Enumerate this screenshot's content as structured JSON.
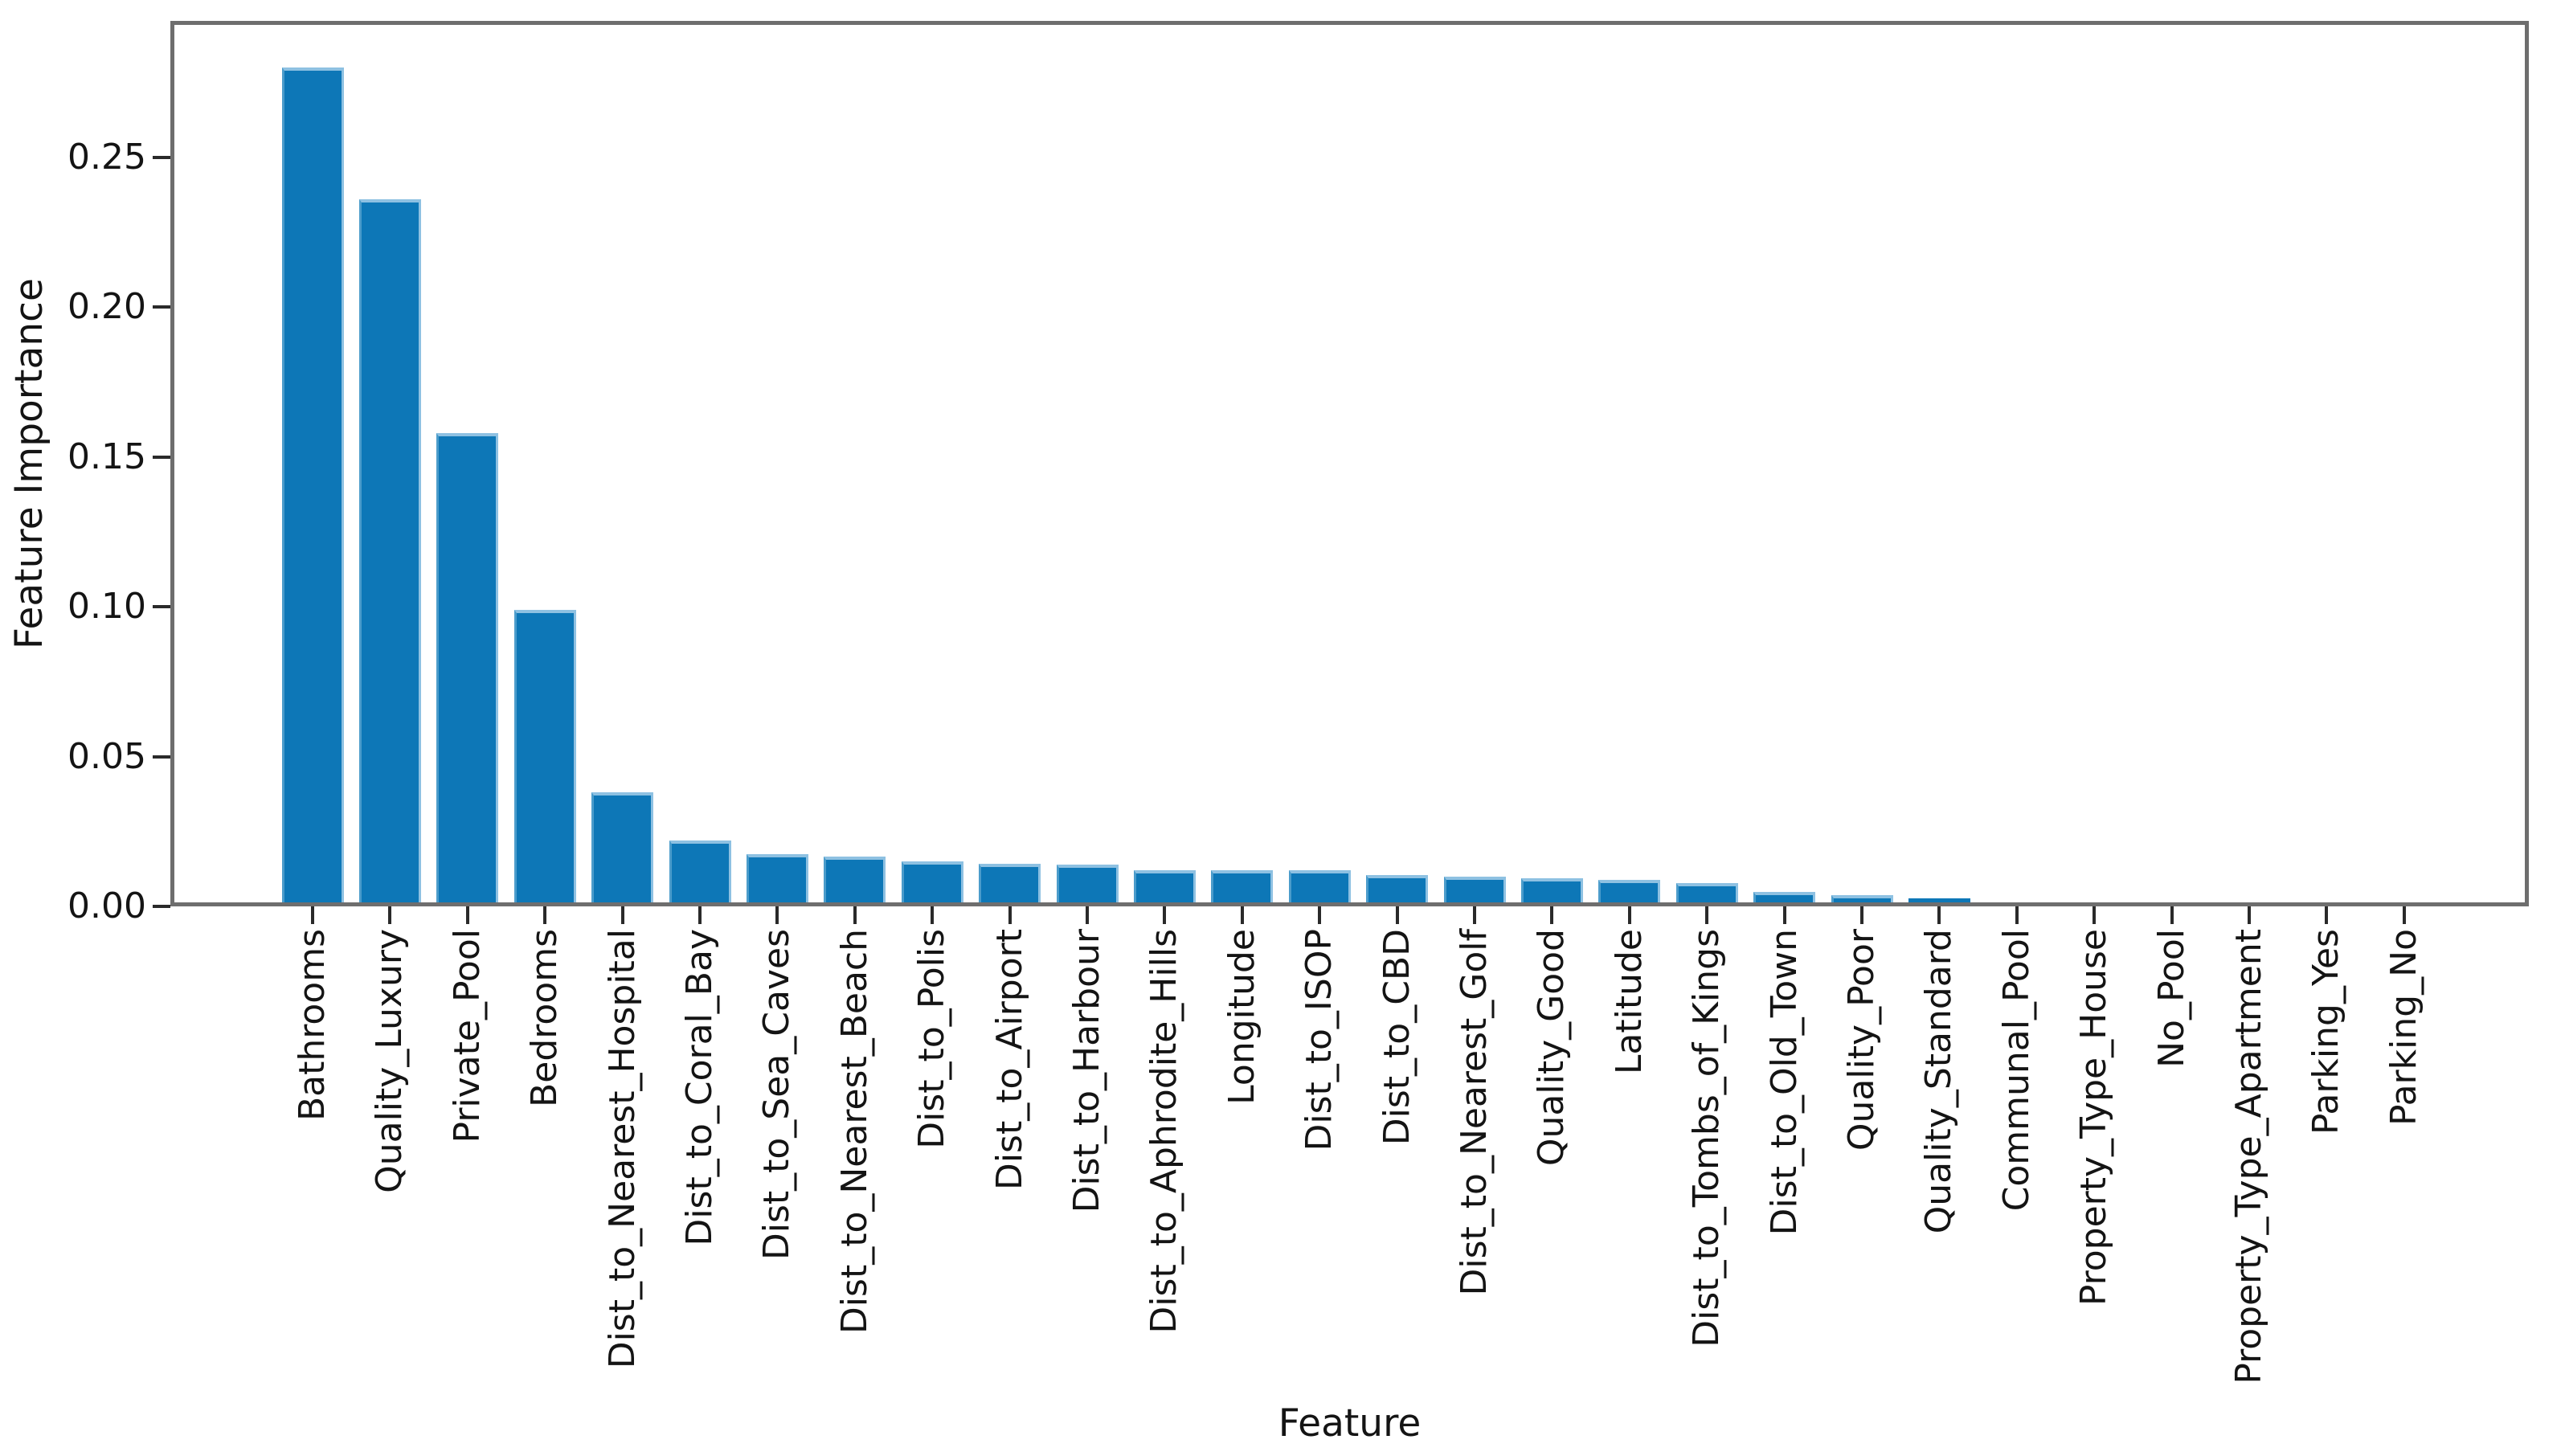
{
  "figure": {
    "background": "#ffffff"
  },
  "chart_data": {
    "type": "bar",
    "title": "",
    "xlabel": "Feature",
    "ylabel": "Feature Importance",
    "categories": [
      "Bathrooms",
      "Quality_Luxury",
      "Private_Pool",
      "Bedrooms",
      "Dist_to_Nearest_Hospital",
      "Dist_to_Coral_Bay",
      "Dist_to_Sea_Caves",
      "Dist_to_Nearest_Beach",
      "Dist_to_Polis",
      "Dist_to_Airport",
      "Dist_to_Harbour",
      "Dist_to_Aphrodite_Hills",
      "Longitude",
      "Dist_to_ISOP",
      "Dist_to_CBD",
      "Dist_to_Nearest_Golf",
      "Quality_Good",
      "Latitude",
      "Dist_to_Tombs_of_Kings",
      "Dist_to_Old_Town",
      "Quality_Poor",
      "Quality_Standard",
      "Communal_Pool",
      "Property_Type_House",
      "No_Pool",
      "Property_Type_Apartment",
      "Parking_Yes",
      "Parking_No"
    ],
    "values": [
      0.28,
      0.236,
      0.158,
      0.099,
      0.038,
      0.022,
      0.0175,
      0.0165,
      0.015,
      0.0142,
      0.014,
      0.0122,
      0.012,
      0.012,
      0.0105,
      0.01,
      0.0095,
      0.0088,
      0.0078,
      0.0048,
      0.0038,
      0.0028,
      0.001,
      0.0009,
      0.0011,
      0.0003,
      0.0002,
      0.0002
    ],
    "ylim": [
      0,
      0.2955
    ],
    "yticks": [
      0.0,
      0.05,
      0.1,
      0.15,
      0.2,
      0.25
    ],
    "ytick_labels": [
      "0.00",
      "0.05",
      "0.10",
      "0.15",
      "0.20",
      "0.25"
    ],
    "xtick_rotation_degrees": 90,
    "grid": false,
    "legend": null,
    "bar_color": "#0d77b7",
    "bar_edge_color": "#8ec1e2",
    "spine_color": "#6e6e6e",
    "tick_color": "#2a2a2a",
    "text_color": "#141414"
  }
}
